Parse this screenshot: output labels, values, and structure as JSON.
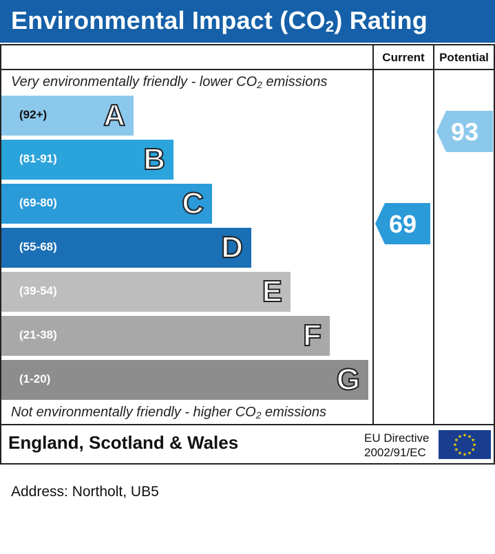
{
  "title": {
    "prefix": "Environmental Impact (CO",
    "subscript": "2",
    "suffix": ") Rating"
  },
  "columns": {
    "current": "Current",
    "potential": "Potential"
  },
  "top_caption": {
    "prefix": "Very environmentally friendly - lower CO",
    "subscript": "2",
    "suffix": " emissions"
  },
  "bottom_caption": {
    "prefix": "Not environmentally friendly - higher CO",
    "subscript": "2",
    "suffix": " emissions"
  },
  "chart_data": {
    "type": "bar",
    "categories": [
      "A",
      "B",
      "C",
      "D",
      "E",
      "F",
      "G"
    ],
    "ranges": [
      "(92+)",
      "(81-91)",
      "(69-80)",
      "(55-68)",
      "(39-54)",
      "(21-38)",
      "(1-20)"
    ],
    "colors": [
      "#8cc8ec",
      "#2ba3db",
      "#2b9ad9",
      "#1a6fb5",
      "#bdbdbd",
      "#a8a8a8",
      "#8d8d8d"
    ],
    "current": {
      "value": 69,
      "band": "C",
      "color": "#2b9ad9"
    },
    "potential": {
      "value": 93,
      "band": "A",
      "color": "#8cc8ec"
    }
  },
  "current_label": "69",
  "potential_label": "93",
  "footer": {
    "region": "England, Scotland & Wales",
    "eu_line1": "EU Directive",
    "eu_line2": "2002/91/EC"
  },
  "address": "Address: Northolt, UB5"
}
